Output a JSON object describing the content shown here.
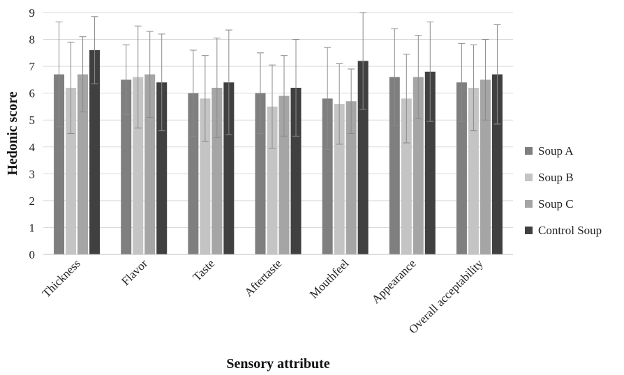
{
  "chart_data": {
    "type": "bar",
    "title": "",
    "xlabel": "Sensory attribute",
    "ylabel": "Hedonic score",
    "ylim": [
      0,
      9
    ],
    "yticks": [
      0,
      1,
      2,
      3,
      4,
      5,
      6,
      7,
      8,
      9
    ],
    "grid": true,
    "legend_position": "right",
    "categories": [
      "Thickness",
      "Flavor",
      "Taste",
      "Aftertaste",
      "Mouthfeel",
      "Appearance",
      "Overall acceptability"
    ],
    "series": [
      {
        "name": "Soup A",
        "color": "#7f7f7f",
        "values": [
          6.7,
          6.5,
          6.0,
          6.0,
          5.8,
          6.6,
          6.4
        ],
        "errors": [
          1.95,
          1.3,
          1.6,
          1.5,
          1.9,
          1.8,
          1.45
        ]
      },
      {
        "name": "Soup B",
        "color": "#c4c4c4",
        "values": [
          6.2,
          6.6,
          5.8,
          5.5,
          5.6,
          5.8,
          6.2
        ],
        "errors": [
          1.7,
          1.9,
          1.6,
          1.55,
          1.5,
          1.65,
          1.6
        ]
      },
      {
        "name": "Soup C",
        "color": "#a5a5a5",
        "values": [
          6.7,
          6.7,
          6.2,
          5.9,
          5.7,
          6.6,
          6.5
        ],
        "errors": [
          1.4,
          1.6,
          1.85,
          1.5,
          1.2,
          1.55,
          1.5
        ]
      },
      {
        "name": "Control Soup",
        "color": "#404040",
        "values": [
          7.6,
          6.4,
          6.4,
          6.2,
          7.2,
          6.8,
          6.7
        ],
        "errors": [
          1.25,
          1.8,
          1.95,
          1.8,
          1.8,
          1.85,
          1.85
        ]
      }
    ]
  }
}
